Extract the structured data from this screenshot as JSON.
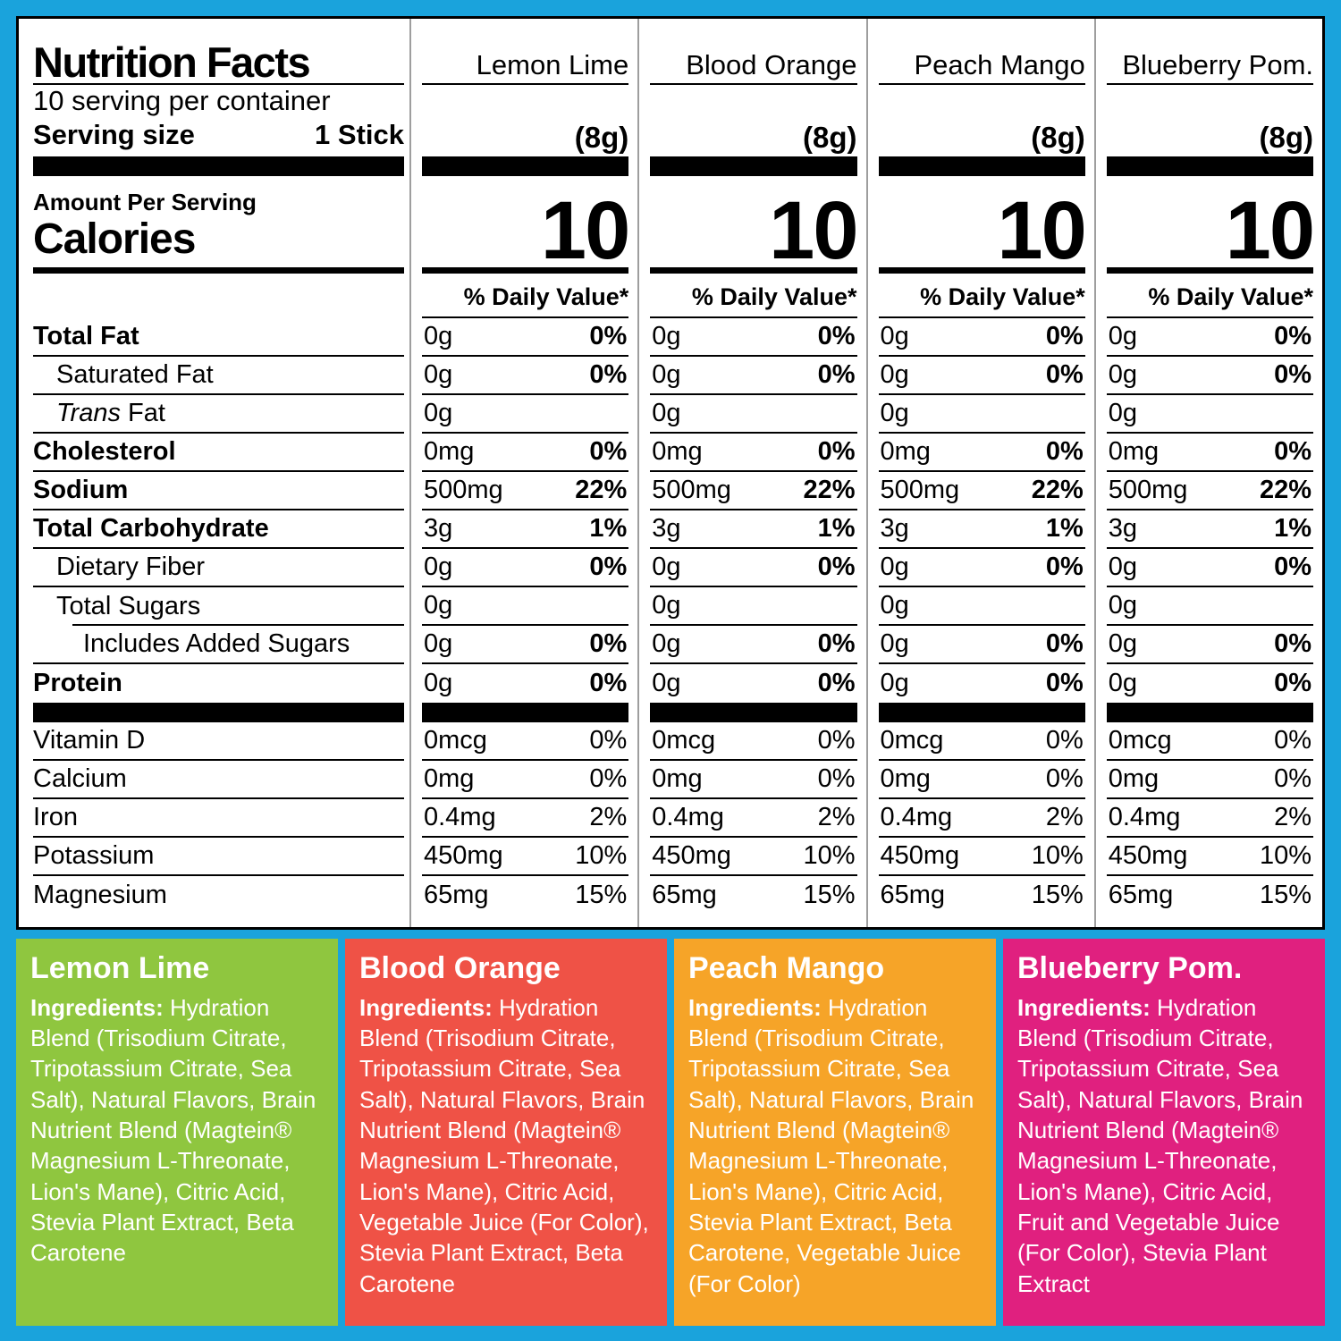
{
  "page": {
    "background_color": "#1aa3dc"
  },
  "nutrition_facts": {
    "title": "Nutrition Facts",
    "servings_per_container": "10 serving per container",
    "serving_size_label": "Serving size",
    "serving_size_value": "1 Stick",
    "amount_per_serving_label": "Amount Per Serving",
    "calories_label": "Calories",
    "daily_value_header": "% Daily Value*",
    "flavors": [
      {
        "name": "Lemon Lime",
        "serving_weight": "(8g)",
        "calories": "10"
      },
      {
        "name": "Blood Orange",
        "serving_weight": "(8g)",
        "calories": "10"
      },
      {
        "name": "Peach Mango",
        "serving_weight": "(8g)",
        "calories": "10"
      },
      {
        "name": "Blueberry Pom.",
        "serving_weight": "(8g)",
        "calories": "10"
      }
    ],
    "rows": [
      {
        "label": "Total Fat",
        "style": "main",
        "amount": "0g",
        "dv": "0%"
      },
      {
        "label": "Saturated Fat",
        "style": "indent",
        "amount": "0g",
        "dv": "0%"
      },
      {
        "label": "Trans Fat",
        "style": "indent",
        "italic_prefix": "Trans",
        "label_rest": " Fat",
        "amount": "0g",
        "dv": ""
      },
      {
        "label": "Cholesterol",
        "style": "main",
        "amount": "0mg",
        "dv": "0%"
      },
      {
        "label": "Sodium",
        "style": "main",
        "amount": "500mg",
        "dv": "22%"
      },
      {
        "label": "Total Carbohydrate",
        "style": "main",
        "amount": "3g",
        "dv": "1%"
      },
      {
        "label": "Dietary Fiber",
        "style": "indent",
        "amount": "0g",
        "dv": "0%"
      },
      {
        "label": "Total Sugars",
        "style": "indent",
        "amount": "0g",
        "dv": "",
        "indented_bottom_line": true
      },
      {
        "label": "Includes Added Sugars",
        "style": "indent2",
        "amount": "0g",
        "dv": "0%"
      },
      {
        "label": "Protein",
        "style": "main",
        "amount": "0g",
        "dv": "0%",
        "section_end": true
      }
    ],
    "vitamin_rows": [
      {
        "label": "Vitamin D",
        "amount": "0mcg",
        "dv": "0%"
      },
      {
        "label": "Calcium",
        "amount": "0mg",
        "dv": "0%"
      },
      {
        "label": "Iron",
        "amount": "0.4mg",
        "dv": "2%"
      },
      {
        "label": "Potassium",
        "amount": "450mg",
        "dv": "10%"
      },
      {
        "label": "Magnesium",
        "amount": "65mg",
        "dv": "15%"
      }
    ]
  },
  "ingredient_panels": [
    {
      "flavor": "Lemon Lime",
      "color": "#8fc63f",
      "ingredients_label": "Ingredients:",
      "text": "Hydration Blend (Trisodium Citrate, Tripotassium Citrate, Sea Salt), Natural Flavors, Brain Nutrient Blend (Magtein® Magnesium L-Threonate, Lion's Mane), Citric Acid, Stevia Plant Extract, Beta Carotene"
    },
    {
      "flavor": "Blood Orange",
      "color": "#ef5246",
      "ingredients_label": "Ingredients:",
      "text": "Hydration Blend (Trisodium Citrate, Tripotassium Citrate, Sea Salt), Natural Flavors, Brain Nutrient Blend (Magtein® Magnesium L-Threonate, Lion's Mane), Citric Acid, Vegetable Juice (For Color), Stevia Plant Extract, Beta Carotene"
    },
    {
      "flavor": "Peach Mango",
      "color": "#f6a428",
      "ingredients_label": "Ingredients:",
      "text": "Hydration Blend (Trisodium Citrate, Tripotassium Citrate, Sea Salt), Natural Flavors, Brain Nutrient Blend (Magtein® Magnesium L-Threonate, Lion's Mane), Citric Acid, Stevia Plant Extract, Beta Carotene, Vegetable Juice (For Color)"
    },
    {
      "flavor": "Blueberry Pom.",
      "color": "#e0207f",
      "ingredients_label": "Ingredients:",
      "text": "Hydration Blend (Trisodium Citrate, Tripotassium Citrate, Sea Salt), Natural Flavors, Brain Nutrient Blend (Magtein® Magnesium L-Threonate, Lion's Mane), Citric Acid, Fruit and Vegetable Juice (For Color), Stevia Plant Extract"
    }
  ]
}
